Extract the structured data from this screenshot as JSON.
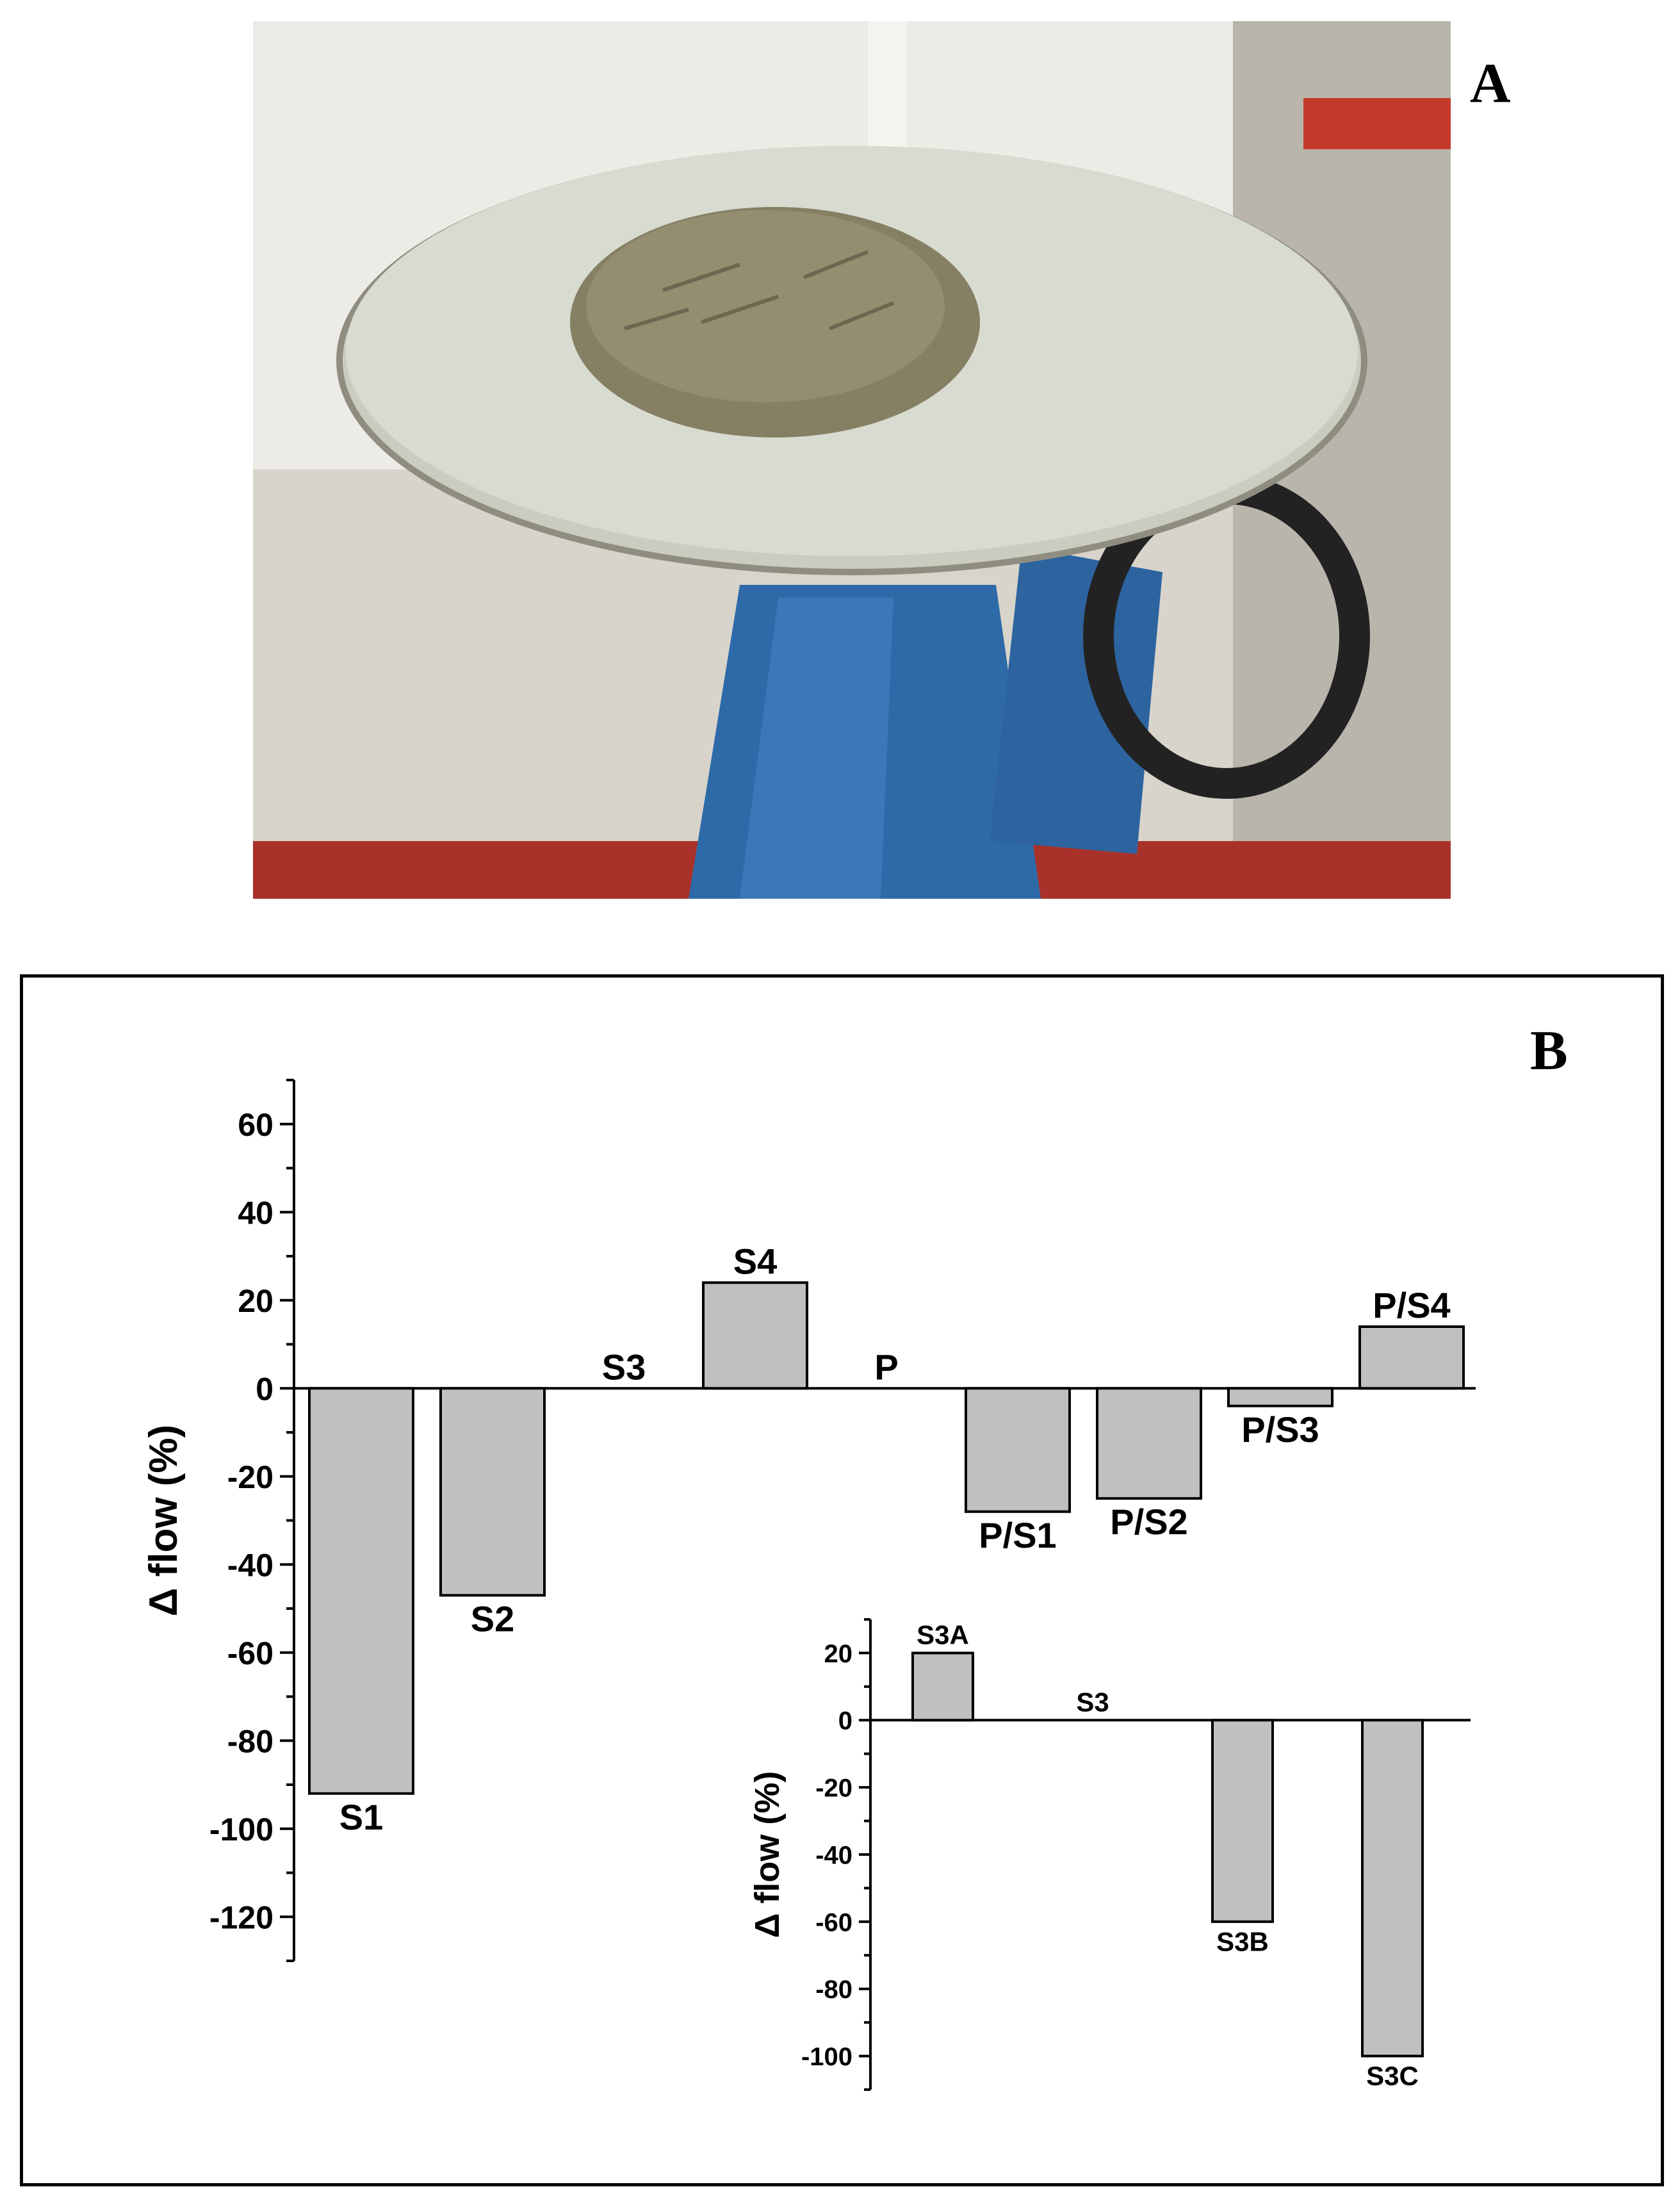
{
  "panel_a": {
    "letter": "A"
  },
  "panel_b": {
    "letter": "B"
  },
  "chart_data": [
    {
      "type": "bar",
      "ylabel": "Δ flow (%)",
      "xlabel": "",
      "ylim": [
        -130,
        70
      ],
      "yticks": [
        60,
        40,
        20,
        0,
        -20,
        -40,
        -60,
        -80,
        -100,
        -120
      ],
      "categories": [
        "S1",
        "S2",
        "S3",
        "S4",
        "P",
        "P/S1",
        "P/S2",
        "P/S3",
        "P/S4"
      ],
      "values": [
        -92,
        -47,
        0,
        24,
        0,
        -28,
        -25,
        -4,
        14
      ],
      "bar_color": "#c0c0c0"
    },
    {
      "type": "bar",
      "ylabel": "Δ flow (%)",
      "xlabel": "",
      "ylim": [
        -110,
        30
      ],
      "yticks": [
        20,
        0,
        -20,
        -40,
        -60,
        -80,
        -100
      ],
      "categories": [
        "S3A",
        "S3",
        "S3B",
        "S3C"
      ],
      "values": [
        20,
        0,
        -60,
        -100
      ],
      "bar_color": "#c0c0c0"
    }
  ]
}
